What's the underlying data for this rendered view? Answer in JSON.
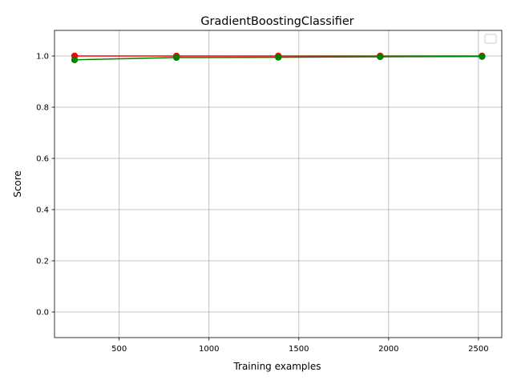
{
  "chart_data": {
    "type": "line",
    "title": "GradientBoostingClassifier",
    "xlabel": "Training examples",
    "ylabel": "Score",
    "xlim": [
      140,
      2630
    ],
    "ylim": [
      -0.1,
      1.1
    ],
    "x_ticks": [
      500,
      1000,
      1500,
      2000,
      2500
    ],
    "y_ticks": [
      0.0,
      0.2,
      0.4,
      0.6,
      0.8,
      1.0
    ],
    "x_tick_labels": [
      "500",
      "1000",
      "1500",
      "2000",
      "2500"
    ],
    "y_tick_labels": [
      "0.0",
      "0.2",
      "0.4",
      "0.6",
      "0.8",
      "1.0"
    ],
    "grid": true,
    "legend": {
      "placement": "top-right",
      "entries": []
    },
    "x": [
      252,
      819,
      1386,
      1953,
      2520
    ],
    "series": [
      {
        "color": "#ff0000",
        "values": [
          1.0,
          1.0,
          1.0,
          1.0,
          1.0
        ]
      },
      {
        "color": "#008000",
        "values": [
          0.985,
          0.994,
          0.995,
          0.997,
          0.998
        ]
      }
    ],
    "colors": {
      "grid": "#b0b0b0",
      "axis": "#000000",
      "legend_border": "#cccccc"
    }
  }
}
